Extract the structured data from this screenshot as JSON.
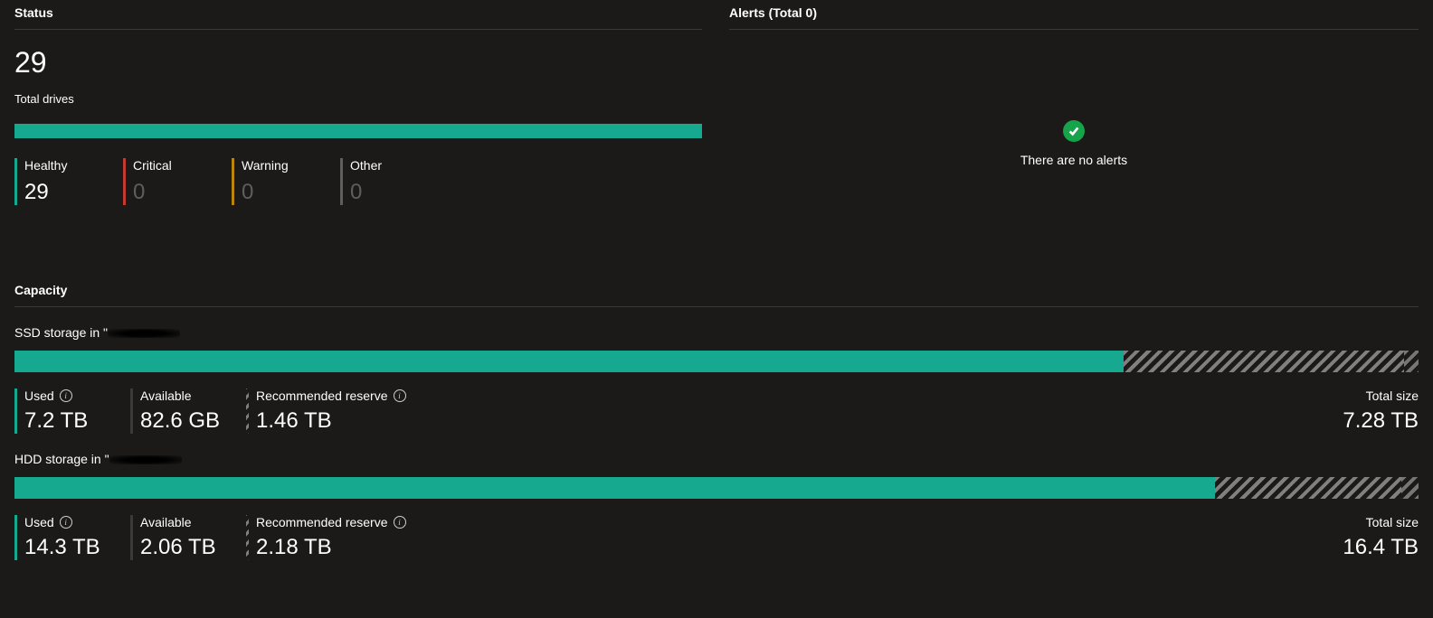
{
  "colors": {
    "healthy": "#17a98f",
    "critical": "#c43a31",
    "warning": "#b8860b",
    "other": "#605e5c",
    "used_border": "#17a98f"
  },
  "status": {
    "header": "Status",
    "total_value": "29",
    "total_label": "Total drives",
    "bar_fill_pct": 100,
    "legend": [
      {
        "key": "healthy",
        "label": "Healthy",
        "value": "29",
        "muted": false
      },
      {
        "key": "critical",
        "label": "Critical",
        "value": "0",
        "muted": true
      },
      {
        "key": "warning",
        "label": "Warning",
        "value": "0",
        "muted": true
      },
      {
        "key": "other",
        "label": "Other",
        "value": "0",
        "muted": true
      }
    ]
  },
  "alerts": {
    "header": "Alerts (Total 0)",
    "empty_text": "There are no alerts"
  },
  "capacity": {
    "header": "Capacity",
    "groups": [
      {
        "title_prefix": "SSD storage in \"",
        "redacted": true,
        "bar": {
          "used_pct": 79.0,
          "reserve_pct": 20.0
        },
        "stats": {
          "used": {
            "label": "Used",
            "value": "7.2 TB",
            "info": true
          },
          "available": {
            "label": "Available",
            "value": "82.6 GB",
            "info": false
          },
          "reserve": {
            "label": "Recommended reserve",
            "value": "1.46 TB",
            "info": true
          }
        },
        "total": {
          "label": "Total size",
          "value": "7.28 TB"
        }
      },
      {
        "title_prefix": "HDD storage in \"",
        "redacted": true,
        "bar": {
          "used_pct": 85.5,
          "reserve_pct": 13.3
        },
        "stats": {
          "used": {
            "label": "Used",
            "value": "14.3 TB",
            "info": true
          },
          "available": {
            "label": "Available",
            "value": "2.06 TB",
            "info": false
          },
          "reserve": {
            "label": "Recommended reserve",
            "value": "2.18 TB",
            "info": true
          }
        },
        "total": {
          "label": "Total size",
          "value": "16.4 TB"
        }
      }
    ]
  }
}
